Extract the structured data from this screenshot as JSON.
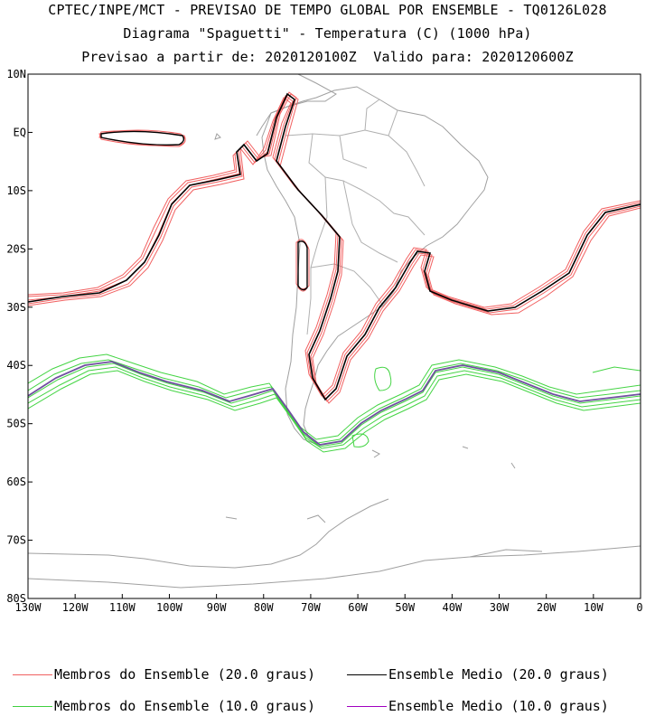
{
  "titles": {
    "line1": "CPTEC/INPE/MCT - PREVISAO DE TEMPO GLOBAL POR ENSEMBLE - TQ0126L028",
    "line2": "Diagrama \"Spaguetti\" - Temperatura (C) (1000 hPa)",
    "line3": "Previsao a partir de: 2020120100Z  Valido para: 2020120600Z"
  },
  "axes": {
    "lat_labels": [
      "10N",
      "EQ",
      "10S",
      "20S",
      "30S",
      "40S",
      "50S",
      "60S",
      "70S",
      "80S"
    ],
    "lon_labels": [
      "130W",
      "120W",
      "110W",
      "100W",
      "90W",
      "80W",
      "70W",
      "60W",
      "50W",
      "40W",
      "30W",
      "20W",
      "10W",
      "0"
    ]
  },
  "legend": [
    {
      "label": "Membros do Ensemble (20.0 graus)",
      "color": "#f06060"
    },
    {
      "label": "Ensemble Medio (20.0 graus)",
      "color": "#000000"
    },
    {
      "label": "Membros do Ensemble (10.0 graus)",
      "color": "#40d040"
    },
    {
      "label": "Ensemble Medio (10.0 graus)",
      "color": "#a000c0"
    }
  ],
  "colors": {
    "coast": "#a0a0a0",
    "members20": "#f05050",
    "mean20": "#000000",
    "members10": "#30d030",
    "mean10": "#7050a0"
  }
}
